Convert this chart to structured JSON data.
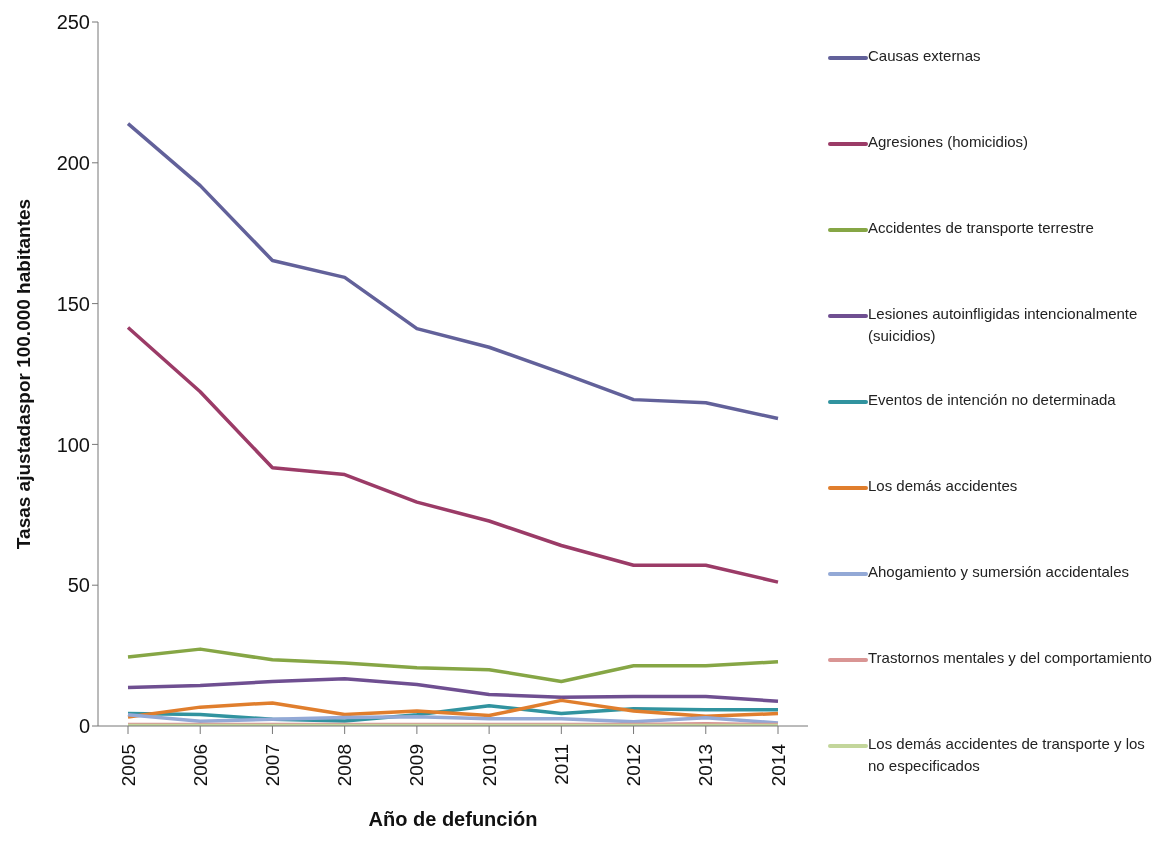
{
  "chart_data": {
    "type": "line",
    "xlabel": "Año de defunción",
    "ylabel": "Tasas ajustadaspor 100.000 habitantes",
    "categories": [
      "2005",
      "2006",
      "2007",
      "2008",
      "2009",
      "2010",
      "2011",
      "2012",
      "2013",
      "2014"
    ],
    "ylim": [
      0,
      250
    ],
    "yticks": [
      0,
      50,
      100,
      150,
      200,
      250
    ],
    "grid": false,
    "legend": "right",
    "marker": "none",
    "line_style": "solid",
    "series": [
      {
        "name": "Causas externas",
        "color": "#62619a",
        "values": [
          213.9,
          191.9,
          165.3,
          159.3,
          141.1,
          134.5,
          125.4,
          115.9,
          114.8,
          109.2
        ]
      },
      {
        "name": "Agresiones (homicidios)",
        "color": "#9b3b67",
        "values": [
          141.5,
          118.7,
          91.7,
          89.3,
          79.5,
          72.8,
          64.1,
          57.1,
          57.1,
          51.1
        ]
      },
      {
        "name": "Accidentes de transporte terrestre",
        "color": "#86a645",
        "values": [
          24.5,
          27.3,
          23.5,
          22.4,
          20.7,
          20.0,
          15.8,
          21.4,
          21.4,
          22.8
        ]
      },
      {
        "name": "Lesiones autoinfligidas intencionalmente (suicidios)",
        "color": "#6f4f91",
        "values": [
          13.7,
          14.4,
          15.8,
          16.8,
          14.7,
          11.2,
          10.2,
          10.5,
          10.5,
          8.8
        ]
      },
      {
        "name": "Eventos de intención no determinada",
        "color": "#31939f",
        "values": [
          4.4,
          4.1,
          2.4,
          1.8,
          4.0,
          7.2,
          4.4,
          6.1,
          5.8,
          5.8
        ]
      },
      {
        "name": "Los demás accidentes",
        "color": "#e07e2d",
        "values": [
          3.2,
          6.7,
          8.2,
          4.1,
          5.3,
          3.7,
          9.1,
          5.3,
          3.5,
          4.4
        ]
      },
      {
        "name": "Ahogamiento y sumersión accidentales",
        "color": "#93a9d6",
        "values": [
          4.0,
          1.7,
          2.4,
          3.0,
          3.3,
          2.6,
          2.6,
          1.5,
          2.9,
          1.1
        ]
      },
      {
        "name": "Trastornos mentales y del comportamiento",
        "color": "#d99594",
        "values": [
          0.5,
          0.5,
          0.5,
          0.5,
          0.5,
          0.5,
          0.5,
          0.5,
          0.8,
          0.5
        ]
      },
      {
        "name": "Los demás accidentes de transporte y los no especificados",
        "color": "#c3d69b",
        "values": [
          0.2,
          0.2,
          0.2,
          0.2,
          0.2,
          0.2,
          0.2,
          0.2,
          0.2,
          0.2
        ]
      }
    ]
  }
}
